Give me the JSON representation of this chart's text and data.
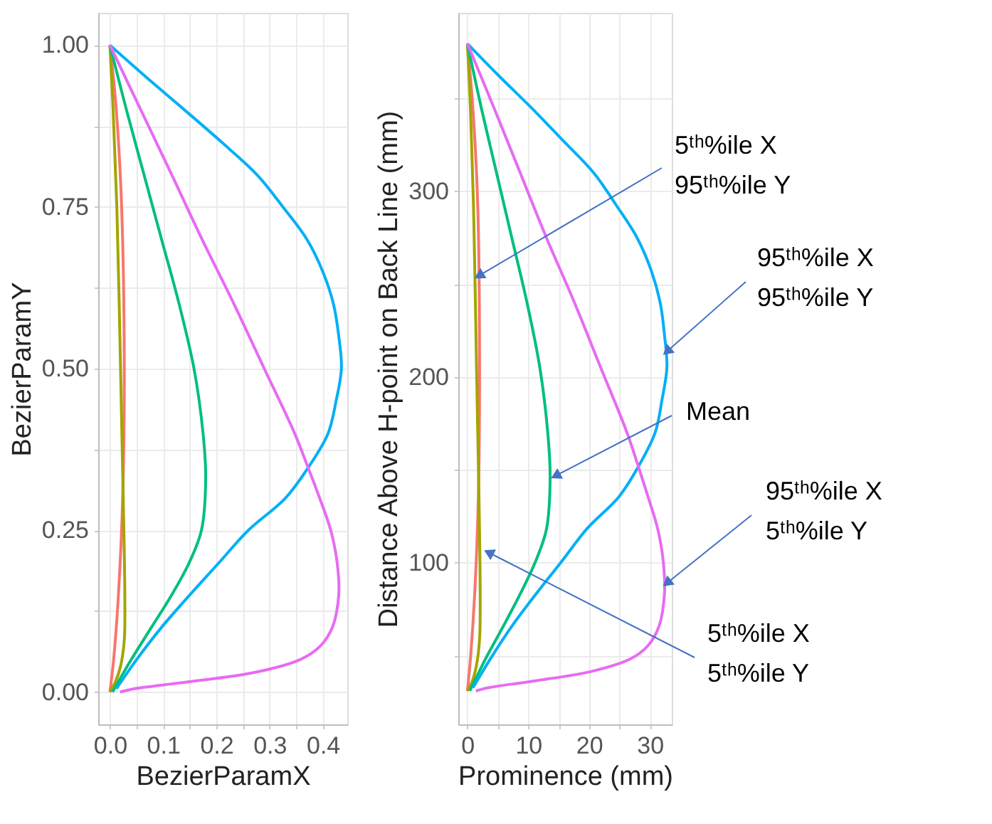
{
  "chart_data": [
    {
      "type": "line",
      "xlabel": "BezierParamX",
      "ylabel": "BezierParamY",
      "xlim": [
        -0.022,
        0.446
      ],
      "ylim": [
        -0.05,
        1.05
      ],
      "xticks": [
        {
          "value": 0,
          "label": "0.0"
        },
        {
          "value": 0.05,
          "label": null
        },
        {
          "value": 0.1,
          "label": "0.1"
        },
        {
          "value": 0.15,
          "label": null
        },
        {
          "value": 0.2,
          "label": "0.2"
        },
        {
          "value": 0.25,
          "label": null
        },
        {
          "value": 0.3,
          "label": "0.3"
        },
        {
          "value": 0.35,
          "label": null
        },
        {
          "value": 0.4,
          "label": "0.4"
        }
      ],
      "yticks": [
        {
          "value": 0,
          "label": "0.00"
        },
        {
          "value": 0.125,
          "label": null
        },
        {
          "value": 0.25,
          "label": "0.25"
        },
        {
          "value": 0.375,
          "label": null
        },
        {
          "value": 0.5,
          "label": "0.50"
        },
        {
          "value": 0.625,
          "label": null
        },
        {
          "value": 0.75,
          "label": "0.75"
        },
        {
          "value": 0.875,
          "label": null
        },
        {
          "value": 1,
          "label": "1.00"
        }
      ],
      "grid": true,
      "legend": false,
      "series": [
        {
          "color": "#f8766d",
          "x": [
            0,
            0.012,
            0.022,
            0.027,
            0.024,
            0.016,
            0.007,
            0
          ],
          "values": [
            1,
            0.9,
            0.75,
            0.5,
            0.3,
            0.15,
            0.05,
            0
          ]
        },
        {
          "color": "#a3a500",
          "x": [
            0,
            0.006,
            0.013,
            0.02,
            0.025,
            0.028,
            0.027,
            0.02,
            0.01,
            0
          ],
          "values": [
            1,
            0.9,
            0.75,
            0.5,
            0.3,
            0.15,
            0.08,
            0.04,
            0.015,
            0
          ]
        },
        {
          "color": "#00bf7d",
          "x": [
            0,
            0.031,
            0.064,
            0.097,
            0.13,
            0.158,
            0.175,
            0.18,
            0.172,
            0.149,
            0.116,
            0.078,
            0.04,
            0.005
          ],
          "values": [
            1,
            0.9,
            0.8,
            0.7,
            0.6,
            0.5,
            0.4,
            0.33,
            0.25,
            0.2,
            0.15,
            0.1,
            0.05,
            0
          ]
        },
        {
          "color": "#00b0f6",
          "x": [
            0,
            0.069,
            0.14,
            0.21,
            0.276,
            0.325,
            0.37,
            0.4,
            0.42,
            0.43,
            0.435,
            0.425,
            0.41,
            0.375,
            0.33,
            0.26,
            0.205,
            0.15,
            0.097,
            0.05,
            0.012
          ],
          "values": [
            1,
            0.95,
            0.9,
            0.85,
            0.8,
            0.75,
            0.7,
            0.65,
            0.6,
            0.55,
            0.5,
            0.45,
            0.4,
            0.35,
            0.3,
            0.25,
            0.2,
            0.15,
            0.1,
            0.05,
            0.005
          ]
        },
        {
          "color": "#e76bf3",
          "x": [
            0,
            0.058,
            0.116,
            0.173,
            0.233,
            0.29,
            0.347,
            0.371,
            0.394,
            0.415,
            0.427,
            0.43,
            0.418,
            0.394,
            0.357,
            0.27,
            0.14,
            0.045,
            0.019
          ],
          "values": [
            1,
            0.9,
            0.8,
            0.7,
            0.6,
            0.5,
            0.4,
            0.35,
            0.3,
            0.25,
            0.2,
            0.15,
            0.1,
            0.07,
            0.05,
            0.03,
            0.015,
            0.005,
            0
          ]
        }
      ]
    },
    {
      "type": "line",
      "xlabel": "Prominence (mm)",
      "ylabel": "Distance Above H-point on Back Line (mm)",
      "xlim": [
        -1.5,
        33.6
      ],
      "ylim": [
        13,
        396
      ],
      "xticks": [
        0,
        {
          "value": 5,
          "label": null
        },
        10,
        {
          "value": 15,
          "label": null
        },
        20,
        {
          "value": 25,
          "label": null
        },
        30
      ],
      "yticks": [
        {
          "value": 50,
          "label": null
        },
        100,
        {
          "value": 150,
          "label": null
        },
        200,
        {
          "value": 250,
          "label": null
        },
        300,
        {
          "value": 350,
          "label": null
        }
      ],
      "grid": true,
      "legend": false,
      "series": [
        {
          "color": "#f8766d",
          "x": [
            0,
            0.9,
            1.7,
            2.0,
            1.8,
            1.2,
            0.5,
            0
          ],
          "values": [
            379.4,
            344.6,
            292.3,
            205.2,
            135.5,
            83.3,
            48.4,
            31
          ]
        },
        {
          "color": "#a3a500",
          "x": [
            0,
            0.5,
            1.0,
            1.5,
            1.9,
            2.1,
            2.0,
            1.5,
            0.8,
            0
          ],
          "values": [
            379.4,
            344.6,
            292.3,
            205.2,
            135.5,
            83.3,
            58.9,
            44.9,
            36.2,
            31
          ]
        },
        {
          "color": "#00bf7d",
          "x": [
            0,
            2.3,
            4.8,
            7.3,
            9.8,
            11.9,
            13.2,
            13.6,
            13.0,
            11.2,
            8.7,
            5.9,
            3.0,
            0.4
          ],
          "values": [
            379.4,
            344.6,
            309.7,
            274.9,
            240,
            205.2,
            170.4,
            146,
            118.1,
            100.7,
            83.3,
            65.8,
            48.4,
            31
          ]
        },
        {
          "color": "#00b0f6",
          "x": [
            0,
            5.2,
            10.6,
            15.8,
            20.8,
            24.5,
            27.9,
            30.2,
            31.7,
            32.4,
            32.8,
            32.0,
            30.9,
            28.3,
            24.9,
            19.6,
            15.5,
            11.3,
            7.3,
            3.8,
            0.9
          ],
          "values": [
            379.4,
            362,
            344.6,
            327,
            309.7,
            292.3,
            274.9,
            257.5,
            240,
            222.6,
            205.2,
            187.8,
            170.4,
            152.9,
            135.5,
            118.1,
            100.7,
            83.3,
            65.8,
            48.4,
            32.7
          ]
        },
        {
          "color": "#e76bf3",
          "x": [
            0,
            4.4,
            8.7,
            13.0,
            17.6,
            21.9,
            26.2,
            28.0,
            29.7,
            31.3,
            32.2,
            32.4,
            31.5,
            29.7,
            26.9,
            20.4,
            10.6,
            3.4,
            1.4
          ],
          "values": [
            379.4,
            344.6,
            309.7,
            274.9,
            240,
            205.2,
            170.4,
            152.9,
            135.5,
            118.1,
            100.7,
            83.3,
            65.8,
            55.4,
            48.4,
            41.5,
            36.2,
            32.7,
            31
          ]
        }
      ],
      "annotations": [
        {
          "text": "5ᵗʰ%ile X\n95ᵗʰ%ile Y",
          "x": 1.9,
          "y": 254.5
        },
        {
          "text": "95ᵗʰ%ile X\n95ᵗʰ%ile Y",
          "x": 32.8,
          "y": 213.7
        },
        {
          "text": "Mean",
          "x": 14.5,
          "y": 146.8
        },
        {
          "text": "95ᵗʰ%ile X\n5ᵗʰ%ile Y",
          "x": 32.8,
          "y": 89
        },
        {
          "text": "5ᵗʰ%ile X\n5ᵗʰ%ile Y",
          "x": 3.5,
          "y": 105.5
        }
      ]
    }
  ]
}
